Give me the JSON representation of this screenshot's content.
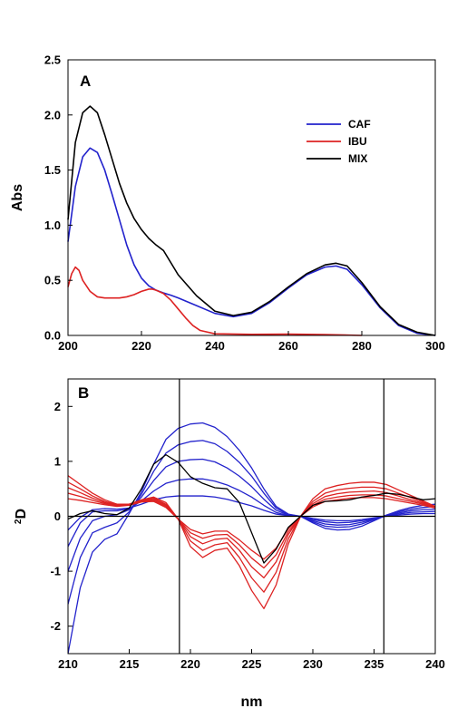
{
  "colors": {
    "CAF": "#2222cc",
    "IBU": "#dd2222",
    "MIX": "#000000"
  },
  "chart_data": [
    {
      "type": "line",
      "panel_label": "A",
      "title": "",
      "xlabel": "",
      "ylabel": "Abs",
      "xlim": [
        200,
        300
      ],
      "ylim": [
        0.0,
        2.5
      ],
      "xticks": [
        200,
        220,
        240,
        260,
        280,
        300
      ],
      "xtick_labels": [
        "200",
        "220",
        "240",
        "260",
        "280",
        "300"
      ],
      "yticks": [
        0.0,
        0.5,
        1.0,
        1.5,
        2.0,
        2.5
      ],
      "ytick_labels": [
        "0.0",
        "0.5",
        "1.0",
        "1.5",
        "2.0",
        "2.5"
      ],
      "legend_position": "top-right",
      "series": [
        {
          "name": "CAF",
          "color": "#2222cc",
          "x": [
            200,
            202,
            204,
            206,
            208,
            210,
            212,
            214,
            216,
            218,
            220,
            222,
            224,
            226,
            228,
            230,
            235,
            240,
            245,
            250,
            255,
            260,
            265,
            270,
            273,
            276,
            280,
            285,
            290,
            295,
            300
          ],
          "y": [
            0.85,
            1.35,
            1.62,
            1.7,
            1.66,
            1.5,
            1.28,
            1.05,
            0.82,
            0.64,
            0.52,
            0.45,
            0.41,
            0.385,
            0.365,
            0.34,
            0.27,
            0.2,
            0.17,
            0.2,
            0.3,
            0.43,
            0.55,
            0.62,
            0.63,
            0.6,
            0.46,
            0.25,
            0.09,
            0.02,
            0.0
          ]
        },
        {
          "name": "IBU",
          "color": "#dd2222",
          "x": [
            200,
            201,
            202,
            203,
            204,
            206,
            208,
            210,
            212,
            214,
            216,
            218,
            220,
            222,
            223,
            224,
            226,
            228,
            230,
            232,
            234,
            236,
            240,
            250,
            260,
            270,
            280
          ],
          "y": [
            0.44,
            0.56,
            0.62,
            0.59,
            0.5,
            0.4,
            0.35,
            0.34,
            0.34,
            0.34,
            0.35,
            0.37,
            0.4,
            0.42,
            0.42,
            0.41,
            0.38,
            0.32,
            0.24,
            0.16,
            0.09,
            0.045,
            0.015,
            0.01,
            0.012,
            0.008,
            0.0
          ]
        },
        {
          "name": "MIX",
          "color": "#000000",
          "x": [
            200,
            202,
            204,
            206,
            208,
            210,
            212,
            214,
            216,
            218,
            220,
            222,
            224,
            226,
            228,
            230,
            235,
            240,
            245,
            250,
            255,
            260,
            265,
            270,
            273,
            276,
            280,
            285,
            290,
            295,
            300
          ],
          "y": [
            1.05,
            1.75,
            2.02,
            2.08,
            2.02,
            1.82,
            1.6,
            1.38,
            1.2,
            1.06,
            0.96,
            0.88,
            0.82,
            0.77,
            0.66,
            0.55,
            0.36,
            0.22,
            0.18,
            0.21,
            0.31,
            0.44,
            0.56,
            0.64,
            0.655,
            0.63,
            0.48,
            0.26,
            0.1,
            0.03,
            0.0
          ]
        }
      ]
    },
    {
      "type": "line",
      "panel_label": "B",
      "title": "",
      "xlabel": "nm",
      "ylabel_base": "D",
      "ylabel_superscript": "2",
      "xlim": [
        210,
        240
      ],
      "ylim": [
        -2.5,
        2.5
      ],
      "xticks": [
        210,
        215,
        220,
        225,
        230,
        235,
        240
      ],
      "xtick_labels": [
        "210",
        "215",
        "220",
        "225",
        "230",
        "235",
        "240"
      ],
      "yticks": [
        -2,
        -1,
        0,
        1,
        2
      ],
      "ytick_labels": [
        "-2",
        "-1",
        "0",
        "1",
        "2"
      ],
      "vertical_lines_x": [
        219.1,
        235.8
      ],
      "zero_line": true,
      "series": [
        {
          "color": "#2222cc",
          "x": [
            210,
            211,
            212,
            213,
            214,
            215,
            216,
            217,
            218,
            219,
            220,
            221,
            222,
            223,
            224,
            225,
            226,
            227,
            228,
            229,
            230,
            231,
            232,
            233,
            234,
            235,
            236,
            237,
            238,
            239,
            240
          ],
          "y": [
            -2.5,
            -1.3,
            -0.65,
            -0.42,
            -0.32,
            0.05,
            0.45,
            0.95,
            1.4,
            1.6,
            1.68,
            1.7,
            1.62,
            1.45,
            1.2,
            0.88,
            0.5,
            0.18,
            0.04,
            0.0,
            -0.12,
            -0.22,
            -0.25,
            -0.24,
            -0.18,
            -0.08,
            0.02,
            0.1,
            0.16,
            0.2,
            0.22
          ]
        },
        {
          "color": "#2222cc",
          "x": [
            210,
            211,
            212,
            213,
            214,
            215,
            216,
            217,
            218,
            219,
            220,
            221,
            222,
            223,
            224,
            225,
            226,
            227,
            228,
            229,
            230,
            231,
            232,
            233,
            234,
            235,
            236,
            237,
            238,
            239,
            240
          ],
          "y": [
            -1.6,
            -0.75,
            -0.3,
            -0.2,
            -0.12,
            0.08,
            0.4,
            0.82,
            1.15,
            1.3,
            1.36,
            1.38,
            1.32,
            1.18,
            0.98,
            0.73,
            0.42,
            0.15,
            0.03,
            0.0,
            -0.1,
            -0.18,
            -0.2,
            -0.19,
            -0.14,
            -0.06,
            0.02,
            0.08,
            0.13,
            0.16,
            0.18
          ]
        },
        {
          "color": "#2222cc",
          "x": [
            210,
            211,
            212,
            213,
            214,
            215,
            216,
            217,
            218,
            219,
            220,
            221,
            222,
            223,
            224,
            225,
            226,
            227,
            228,
            229,
            230,
            231,
            232,
            233,
            234,
            235,
            236,
            237,
            238,
            239,
            240
          ],
          "y": [
            -1.0,
            -0.4,
            -0.08,
            0.0,
            0.03,
            0.12,
            0.35,
            0.65,
            0.9,
            1.0,
            1.03,
            1.04,
            0.99,
            0.88,
            0.73,
            0.54,
            0.31,
            0.11,
            0.02,
            0.0,
            -0.08,
            -0.14,
            -0.16,
            -0.15,
            -0.11,
            -0.05,
            0.01,
            0.06,
            0.1,
            0.12,
            0.13
          ]
        },
        {
          "color": "#2222cc",
          "x": [
            210,
            211,
            212,
            213,
            214,
            215,
            216,
            217,
            218,
            219,
            220,
            221,
            222,
            223,
            224,
            225,
            226,
            227,
            228,
            229,
            230,
            231,
            232,
            233,
            234,
            235,
            236,
            237,
            238,
            239,
            240
          ],
          "y": [
            -0.55,
            -0.12,
            0.08,
            0.1,
            0.1,
            0.14,
            0.28,
            0.46,
            0.6,
            0.66,
            0.68,
            0.68,
            0.64,
            0.57,
            0.47,
            0.35,
            0.2,
            0.07,
            0.01,
            0.0,
            -0.06,
            -0.1,
            -0.12,
            -0.11,
            -0.08,
            -0.04,
            0.01,
            0.04,
            0.07,
            0.08,
            0.09
          ]
        },
        {
          "color": "#2222cc",
          "x": [
            210,
            211,
            212,
            213,
            214,
            215,
            216,
            217,
            218,
            219,
            220,
            221,
            222,
            223,
            224,
            225,
            226,
            227,
            228,
            229,
            230,
            231,
            232,
            233,
            234,
            235,
            236,
            237,
            238,
            239,
            240
          ],
          "y": [
            -0.25,
            -0.02,
            0.12,
            0.14,
            0.13,
            0.15,
            0.22,
            0.3,
            0.35,
            0.37,
            0.37,
            0.37,
            0.35,
            0.31,
            0.25,
            0.19,
            0.11,
            0.04,
            0.01,
            0.0,
            -0.04,
            -0.07,
            -0.08,
            -0.08,
            -0.06,
            -0.03,
            0.0,
            0.02,
            0.04,
            0.05,
            0.05
          ]
        },
        {
          "color": "#dd2222",
          "x": [
            210,
            211,
            212,
            213,
            214,
            215,
            216,
            217,
            218,
            219,
            220,
            221,
            222,
            223,
            224,
            225,
            226,
            227,
            228,
            229,
            230,
            231,
            232,
            233,
            234,
            235,
            236,
            237,
            238,
            239,
            240
          ],
          "y": [
            0.74,
            0.58,
            0.42,
            0.3,
            0.22,
            0.22,
            0.3,
            0.35,
            0.25,
            -0.05,
            -0.55,
            -0.75,
            -0.62,
            -0.58,
            -0.9,
            -1.35,
            -1.68,
            -1.25,
            -0.5,
            0.0,
            0.32,
            0.5,
            0.56,
            0.6,
            0.62,
            0.62,
            0.58,
            0.48,
            0.38,
            0.28,
            0.18
          ]
        },
        {
          "color": "#dd2222",
          "x": [
            210,
            211,
            212,
            213,
            214,
            215,
            216,
            217,
            218,
            219,
            220,
            221,
            222,
            223,
            224,
            225,
            226,
            227,
            228,
            229,
            230,
            231,
            232,
            233,
            234,
            235,
            236,
            237,
            238,
            239,
            240
          ],
          "y": [
            0.62,
            0.5,
            0.37,
            0.27,
            0.21,
            0.22,
            0.29,
            0.33,
            0.22,
            -0.05,
            -0.45,
            -0.62,
            -0.52,
            -0.48,
            -0.75,
            -1.12,
            -1.38,
            -1.02,
            -0.41,
            0.0,
            0.27,
            0.42,
            0.48,
            0.51,
            0.53,
            0.53,
            0.5,
            0.42,
            0.34,
            0.26,
            0.18
          ]
        },
        {
          "color": "#dd2222",
          "x": [
            210,
            211,
            212,
            213,
            214,
            215,
            216,
            217,
            218,
            219,
            220,
            221,
            222,
            223,
            224,
            225,
            226,
            227,
            228,
            229,
            230,
            231,
            232,
            233,
            234,
            235,
            236,
            237,
            238,
            239,
            240
          ],
          "y": [
            0.52,
            0.43,
            0.33,
            0.25,
            0.2,
            0.22,
            0.28,
            0.31,
            0.2,
            -0.05,
            -0.37,
            -0.5,
            -0.42,
            -0.4,
            -0.62,
            -0.92,
            -1.12,
            -0.83,
            -0.33,
            0.0,
            0.23,
            0.36,
            0.41,
            0.44,
            0.45,
            0.46,
            0.43,
            0.37,
            0.3,
            0.24,
            0.17
          ]
        },
        {
          "color": "#dd2222",
          "x": [
            210,
            211,
            212,
            213,
            214,
            215,
            216,
            217,
            218,
            219,
            220,
            221,
            222,
            223,
            224,
            225,
            226,
            227,
            228,
            229,
            230,
            231,
            232,
            233,
            234,
            235,
            236,
            237,
            238,
            239,
            240
          ],
          "y": [
            0.42,
            0.36,
            0.29,
            0.23,
            0.19,
            0.21,
            0.27,
            0.29,
            0.18,
            -0.05,
            -0.3,
            -0.4,
            -0.34,
            -0.33,
            -0.52,
            -0.76,
            -0.94,
            -0.7,
            -0.28,
            0.0,
            0.2,
            0.31,
            0.35,
            0.38,
            0.39,
            0.39,
            0.37,
            0.32,
            0.27,
            0.22,
            0.16
          ]
        },
        {
          "color": "#dd2222",
          "x": [
            210,
            211,
            212,
            213,
            214,
            215,
            216,
            217,
            218,
            219,
            220,
            221,
            222,
            223,
            224,
            225,
            226,
            227,
            228,
            229,
            230,
            231,
            232,
            233,
            234,
            235,
            236,
            237,
            238,
            239,
            240
          ],
          "y": [
            0.32,
            0.29,
            0.25,
            0.21,
            0.18,
            0.2,
            0.26,
            0.27,
            0.16,
            -0.05,
            -0.24,
            -0.32,
            -0.27,
            -0.27,
            -0.43,
            -0.62,
            -0.78,
            -0.58,
            -0.23,
            0.0,
            0.17,
            0.27,
            0.3,
            0.33,
            0.34,
            0.34,
            0.32,
            0.28,
            0.24,
            0.2,
            0.15
          ]
        },
        {
          "color": "#000000",
          "x": [
            210,
            211,
            212,
            213,
            214,
            215,
            216,
            217,
            218,
            219,
            220,
            221,
            222,
            223,
            224,
            225,
            226,
            227,
            228,
            229,
            230,
            231,
            232,
            233,
            234,
            235,
            236,
            237,
            238,
            239,
            240
          ],
          "y": [
            -0.05,
            0.05,
            0.1,
            0.05,
            0.03,
            0.15,
            0.5,
            0.95,
            1.12,
            0.98,
            0.72,
            0.6,
            0.52,
            0.5,
            0.25,
            -0.3,
            -0.85,
            -0.6,
            -0.2,
            0.0,
            0.2,
            0.27,
            0.28,
            0.3,
            0.35,
            0.38,
            0.42,
            0.4,
            0.35,
            0.3,
            0.32
          ]
        }
      ]
    }
  ]
}
